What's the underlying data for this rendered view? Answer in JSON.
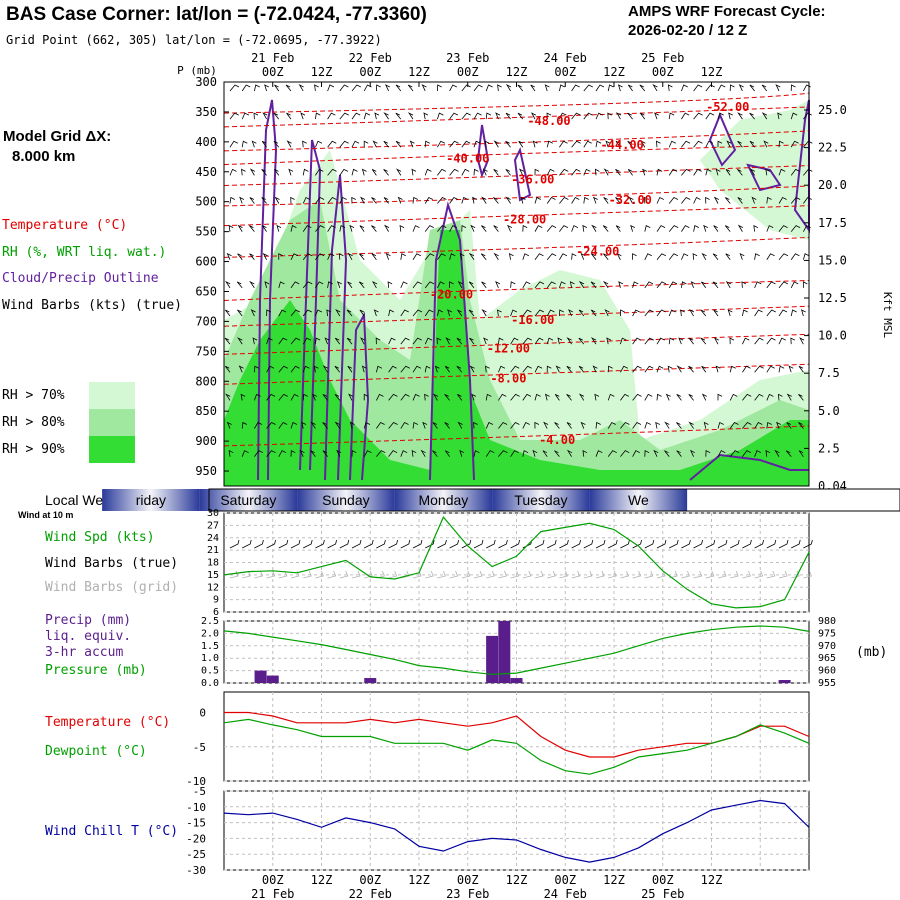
{
  "header": {
    "title": "BAS Case Corner:  lat/lon = (-72.0424, -77.3360)",
    "grid_point": "Grid Point (662, 305) lat/lon = (-72.0695, -77.3922)",
    "cycle_label": "AMPS WRF Forecast Cycle:",
    "cycle_value": "2026-02-20 / 12  Z"
  },
  "left_panel": {
    "grid_label": "Model Grid ΔX:",
    "grid_value": "8.000 km",
    "legend_temperature": "Temperature (°C)",
    "legend_rh": "RH (%, WRT liq. wat.)",
    "legend_cloud": "Cloud/Precip Outline",
    "legend_wind": "Wind Barbs (kts) (true)",
    "rh_levels": [
      "RH > 70%",
      "RH > 80%",
      "RH > 90%"
    ],
    "local_weekday_label": "Local Weekday",
    "wind_at_10m": "Wind at 10 m",
    "wind_spd_label": "Wind Spd (kts)",
    "wind_barbs_true": "Wind Barbs (true)",
    "wind_barbs_grid": "Wind Barbs (grid)",
    "precip_label": "Precip (mm)",
    "precip_sub1": "liq. equiv.",
    "precip_sub2": "3-hr accum",
    "pressure_label": "Pressure (mb)",
    "temperature_label": "Temperature (°C)",
    "dewpoint_label": "Dewpoint (°C)",
    "windchill_label": "Wind Chill T (°C)"
  },
  "colors": {
    "temperature": "#e00000",
    "rh": "#00a000",
    "cloud": "#6020a0",
    "wind_grey": "#b0b0b0",
    "windchill": "#0000a0",
    "rh70": "#d4f8d4",
    "rh80": "#a0e8a0",
    "rh90": "#33dd33",
    "precip": "#5a1e8c"
  },
  "chart_data": [
    {
      "type": "heatmap",
      "name": "time-height cross section",
      "y_axis_label": "P (mb)",
      "pressure_ticks": [
        "300",
        "350",
        "400",
        "450",
        "500",
        "550",
        "600",
        "650",
        "700",
        "750",
        "800",
        "850",
        "900",
        "950"
      ],
      "right_axis_label": "Kft MSL",
      "height_ticks": [
        "25.0",
        "22.5",
        "20.0",
        "17.5",
        "15.0",
        "12.5",
        "10.0",
        "7.5",
        "5.0",
        "2.5",
        "0.04"
      ],
      "time_top_dates": [
        "21 Feb",
        "22 Feb",
        "23 Feb",
        "24 Feb",
        "25 Feb"
      ],
      "time_ticks": [
        "00Z",
        "12Z",
        "00Z",
        "12Z",
        "00Z",
        "12Z",
        "00Z",
        "12Z",
        "00Z",
        "12Z"
      ],
      "temperature_contour_labels": [
        {
          "label": "-52.00",
          "time_h": 124,
          "p": 342
        },
        {
          "label": "-48.00",
          "time_h": 80,
          "p": 365
        },
        {
          "label": "-44.00",
          "time_h": 98,
          "p": 405
        },
        {
          "label": "-40.00",
          "time_h": 60,
          "p": 428
        },
        {
          "label": "-36.00",
          "time_h": 76,
          "p": 463
        },
        {
          "label": "-32.00",
          "time_h": 100,
          "p": 497
        },
        {
          "label": "-28.00",
          "time_h": 74,
          "p": 530
        },
        {
          "label": "-24.00",
          "time_h": 92,
          "p": 583
        },
        {
          "label": "-20.00",
          "time_h": 56,
          "p": 655
        },
        {
          "label": "-16.00",
          "time_h": 76,
          "p": 698
        },
        {
          "label": "-12.00",
          "time_h": 70,
          "p": 745
        },
        {
          "label": "-8.00",
          "time_h": 70,
          "p": 795
        },
        {
          "label": "-4.00",
          "time_h": 82,
          "p": 898
        }
      ]
    },
    {
      "type": "table",
      "name": "weekday strip",
      "days": [
        "riday",
        "Saturday",
        "Sunday",
        "Monday",
        "Tuesday",
        "We"
      ]
    },
    {
      "type": "line",
      "name": "10 m wind speed",
      "ylabel": "",
      "yticks": [
        "30",
        "27",
        "24",
        "21",
        "18",
        "15",
        "12",
        "9",
        "6"
      ],
      "ylim": [
        6,
        30
      ],
      "x_hours": [
        0,
        6,
        12,
        18,
        24,
        30,
        36,
        42,
        48,
        54,
        60,
        66,
        72,
        78,
        84,
        90,
        96,
        102,
        108,
        114,
        120,
        126,
        132,
        138,
        144
      ],
      "values": [
        15,
        15.8,
        16,
        15.5,
        17,
        18.5,
        14.5,
        14,
        15.5,
        29,
        22,
        17,
        19.5,
        25.5,
        26.5,
        27.5,
        26,
        22,
        16,
        11.5,
        8,
        7,
        7.3,
        9,
        20.5
      ]
    },
    {
      "type": "bar",
      "name": "3-hr precip",
      "yticks": [
        "2.5",
        "2.0",
        "1.5",
        "1.0",
        "0.5",
        "0.0"
      ],
      "ylim": [
        0,
        2.5
      ],
      "bars": [
        {
          "time_h": 9,
          "value": 0.5
        },
        {
          "time_h": 12,
          "value": 0.3
        },
        {
          "time_h": 36,
          "value": 0.2
        },
        {
          "time_h": 66,
          "value": 1.9
        },
        {
          "time_h": 69,
          "value": 2.5
        },
        {
          "time_h": 72,
          "value": 0.2
        },
        {
          "time_h": 138,
          "value": 0.12
        }
      ]
    },
    {
      "type": "line",
      "name": "surface pressure",
      "yticks_right": [
        "980",
        "975",
        "970",
        "965",
        "960",
        "955"
      ],
      "ylim": [
        955,
        980
      ],
      "right_unit": "(mb)",
      "x_hours": [
        0,
        6,
        12,
        18,
        24,
        30,
        36,
        42,
        48,
        54,
        60,
        66,
        72,
        78,
        84,
        90,
        96,
        102,
        108,
        114,
        120,
        126,
        132,
        138,
        144
      ],
      "values": [
        976,
        975,
        973.5,
        972,
        970.5,
        968.5,
        966.5,
        964.5,
        962,
        961,
        959.5,
        958.5,
        959,
        961,
        963,
        965,
        967,
        970,
        973,
        975,
        976.5,
        977.5,
        978,
        977.5,
        975.8
      ]
    },
    {
      "type": "line",
      "name": "temperature and dewpoint",
      "yticks": [
        "0",
        "-5",
        "-10"
      ],
      "ylim": [
        -10,
        3
      ],
      "x_hours": [
        0,
        6,
        12,
        18,
        24,
        30,
        36,
        42,
        48,
        54,
        60,
        66,
        72,
        78,
        84,
        90,
        96,
        102,
        108,
        114,
        120,
        126,
        132,
        138,
        144
      ],
      "series": [
        {
          "name": "temperature",
          "values": [
            0,
            0,
            -0.5,
            -1.5,
            -1.5,
            -1.5,
            -1,
            -1.5,
            -1,
            -1.5,
            -2,
            -1.5,
            -0.5,
            -3.5,
            -5.5,
            -6.5,
            -6.5,
            -5.5,
            -5,
            -4.5,
            -4.5,
            -3.5,
            -2,
            -2,
            -3.5
          ]
        },
        {
          "name": "dewpoint",
          "values": [
            -1.5,
            -1,
            -1.8,
            -2.5,
            -3.5,
            -3.5,
            -3.5,
            -4.5,
            -4.5,
            -4.5,
            -5.5,
            -4,
            -4.5,
            -7,
            -8.5,
            -9,
            -8,
            -6.5,
            -6,
            -5.5,
            -4.5,
            -3.5,
            -1.8,
            -3,
            -4.5
          ]
        }
      ]
    },
    {
      "type": "line",
      "name": "wind chill",
      "yticks": [
        "-5",
        "-10",
        "-15",
        "-20",
        "-25",
        "-30"
      ],
      "ylim": [
        -30,
        -5
      ],
      "x_hours": [
        0,
        6,
        12,
        18,
        24,
        30,
        36,
        42,
        48,
        54,
        60,
        66,
        72,
        78,
        84,
        90,
        96,
        102,
        108,
        114,
        120,
        126,
        132,
        138,
        144
      ],
      "values": [
        -12,
        -12.5,
        -12,
        -14,
        -16.5,
        -13.5,
        -15,
        -17,
        -22.5,
        -24,
        -21,
        -20,
        -20.5,
        -23.5,
        -26,
        -27.5,
        -26,
        -23,
        -18.5,
        -15,
        -11,
        -9.5,
        -8,
        -9,
        -16.5
      ]
    }
  ],
  "bottom_axis": {
    "ticks": [
      "00Z",
      "12Z",
      "00Z",
      "12Z",
      "00Z",
      "12Z",
      "00Z",
      "12Z",
      "00Z",
      "12Z"
    ],
    "dates": [
      "21 Feb",
      "22 Feb",
      "23 Feb",
      "24 Feb",
      "25 Feb"
    ]
  }
}
